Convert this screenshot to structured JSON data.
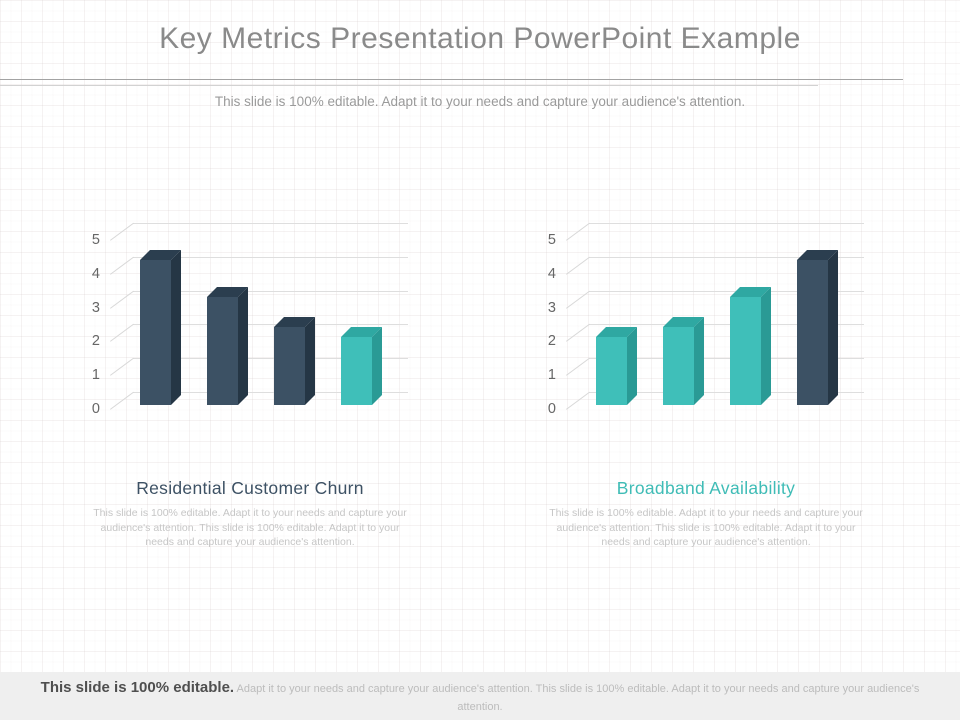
{
  "header": {
    "title": "Key Metrics Presentation PowerPoint Example",
    "subtitle": "This slide is 100% editable. Adapt it to your needs and capture your audience's attention.",
    "title_color": "#8a8a8a"
  },
  "chart_data": [
    {
      "type": "bar",
      "style": "3d",
      "title": "Residential Customer Churn",
      "title_color": "#3d5164",
      "description": "This slide is 100% editable. Adapt it to your needs and capture your audience's attention. This slide is 100% editable. Adapt it to your needs and capture your audience's attention.",
      "values": [
        4.3,
        3.2,
        2.3,
        2.0
      ],
      "colors": [
        "dark",
        "dark",
        "dark",
        "teal"
      ],
      "yticks": [
        0,
        1,
        2,
        3,
        4,
        5
      ],
      "ylim": [
        0,
        5
      ],
      "xlabel": "",
      "ylabel": "",
      "grid": true,
      "legend": false
    },
    {
      "type": "bar",
      "style": "3d",
      "title": "Broadband Availability",
      "title_color": "#3fbcb6",
      "description": "This slide is 100% editable. Adapt it to your needs and capture your audience's attention. This slide is 100% editable. Adapt it to your needs and capture your audience's attention.",
      "values": [
        2.0,
        2.3,
        3.2,
        4.3
      ],
      "colors": [
        "teal",
        "teal",
        "teal",
        "dark"
      ],
      "yticks": [
        0,
        1,
        2,
        3,
        4,
        5
      ],
      "ylim": [
        0,
        5
      ],
      "xlabel": "",
      "ylabel": "",
      "grid": true,
      "legend": false
    }
  ],
  "palette": {
    "dark": {
      "front": "#3c5164",
      "top": "#2b3e4f",
      "side": "#253645"
    },
    "teal": {
      "front": "#3fbfb9",
      "top": "#2fa8a2",
      "side": "#2a9a95"
    },
    "gridline": "#dedede",
    "tick_text": "#666666"
  },
  "footer": {
    "lead": "This slide is 100% editable.",
    "body": " Adapt it to your needs and capture your audience's attention. This slide is 100% editable. Adapt it to your needs and capture your audience's attention."
  }
}
